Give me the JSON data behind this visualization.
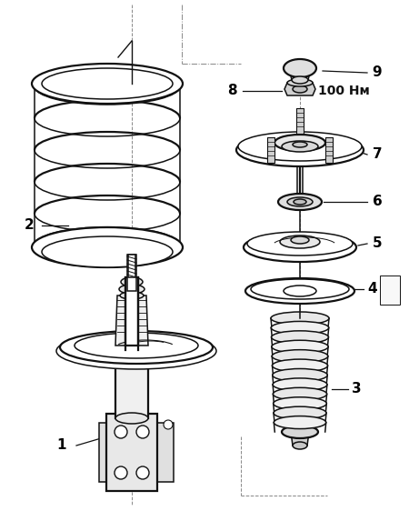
{
  "bg_color": "#ffffff",
  "line_color": "#111111",
  "label_color": "#000000",
  "figsize": [
    4.5,
    5.62
  ],
  "dpi": 100,
  "torque_label": "100 Нм"
}
